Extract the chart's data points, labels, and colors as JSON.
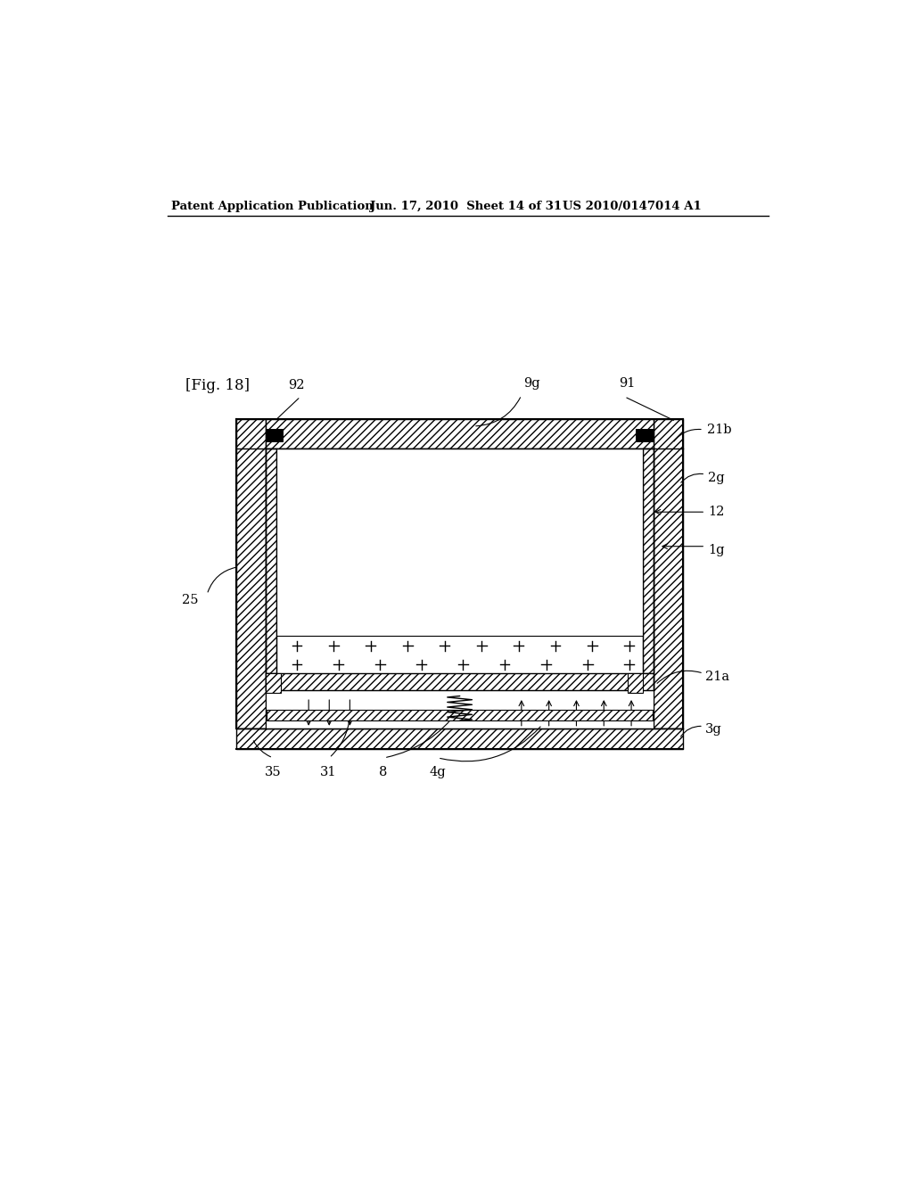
{
  "header_left": "Patent Application Publication",
  "header_mid": "Jun. 17, 2010  Sheet 14 of 31",
  "header_right": "US 2010/0147014 A1",
  "fig_label": "[Fig. 18]",
  "background": "#ffffff",
  "line_color": "#000000"
}
